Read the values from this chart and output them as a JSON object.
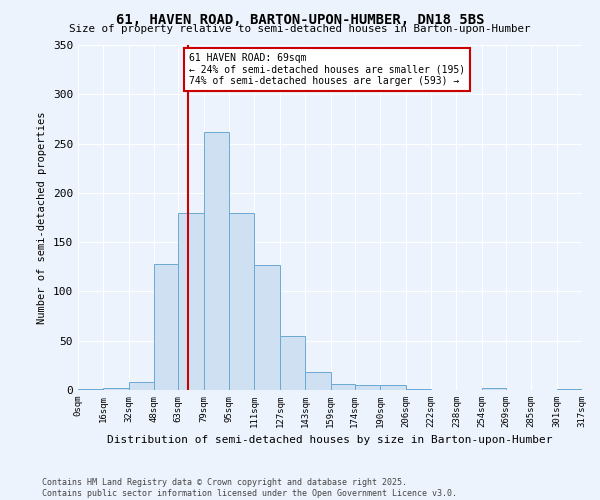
{
  "title": "61, HAVEN ROAD, BARTON-UPON-HUMBER, DN18 5BS",
  "subtitle": "Size of property relative to semi-detached houses in Barton-upon-Humber",
  "xlabel": "Distribution of semi-detached houses by size in Barton-upon-Humber",
  "ylabel": "Number of semi-detached properties",
  "footnote1": "Contains HM Land Registry data © Crown copyright and database right 2025.",
  "footnote2": "Contains public sector information licensed under the Open Government Licence v3.0.",
  "bar_edges": [
    0,
    16,
    32,
    48,
    63,
    79,
    95,
    111,
    127,
    143,
    159,
    174,
    190,
    206,
    222,
    238,
    254,
    269,
    285,
    301,
    317
  ],
  "bar_heights": [
    1,
    2,
    8,
    128,
    180,
    262,
    180,
    127,
    55,
    18,
    6,
    5,
    5,
    1,
    0,
    0,
    2,
    0,
    0,
    1
  ],
  "bar_color": "#cfe0f3",
  "bar_edge_color": "#6aaad4",
  "tick_labels": [
    "0sqm",
    "16sqm",
    "32sqm",
    "48sqm",
    "63sqm",
    "79sqm",
    "95sqm",
    "111sqm",
    "127sqm",
    "143sqm",
    "159sqm",
    "174sqm",
    "190sqm",
    "206sqm",
    "222sqm",
    "238sqm",
    "254sqm",
    "269sqm",
    "285sqm",
    "301sqm",
    "317sqm"
  ],
  "property_size": 69,
  "vline_x": 69,
  "vline_color": "#cc0000",
  "annotation_title": "61 HAVEN ROAD: 69sqm",
  "annotation_line1": "← 24% of semi-detached houses are smaller (195)",
  "annotation_line2": "74% of semi-detached houses are larger (593) →",
  "annotation_box_color": "#cc0000",
  "ylim": [
    0,
    350
  ],
  "yticks": [
    0,
    50,
    100,
    150,
    200,
    250,
    300,
    350
  ],
  "background_color": "#edf3fc",
  "plot_bg_color": "#edf3fc",
  "grid_color": "#ffffff"
}
